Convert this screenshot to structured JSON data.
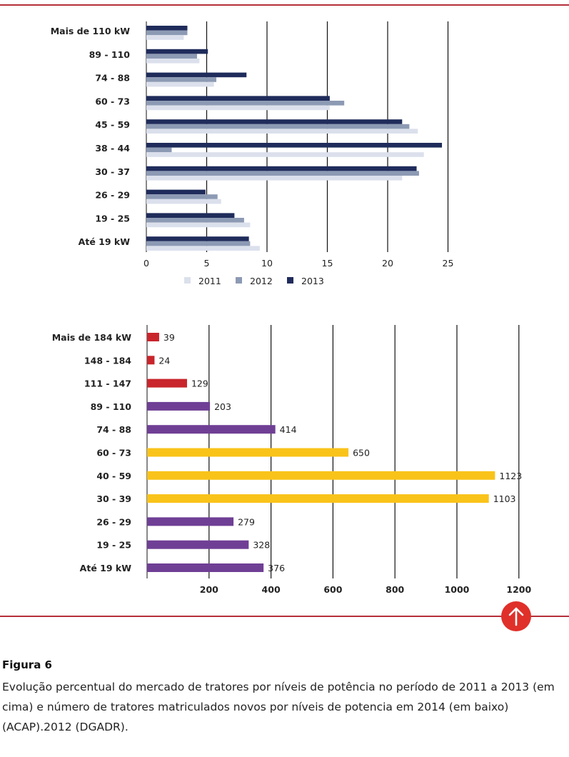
{
  "chart_data": [
    {
      "type": "bar",
      "orientation": "horizontal",
      "categories": [
        "Mais de 110 kW",
        "89 - 110",
        "74 - 88",
        "60 - 73",
        "45 - 59",
        "38 - 44",
        "30 - 37",
        "26 -  29",
        "19 - 25",
        "Até 19 kW"
      ],
      "series": [
        {
          "name": "2011",
          "color": "#dbe0ec",
          "values": [
            3.1,
            4.4,
            5.6,
            15.2,
            22.5,
            23.0,
            21.2,
            6.2,
            8.6,
            9.4
          ]
        },
        {
          "name": "2012",
          "color": "#8d9ab4",
          "values": [
            3.4,
            4.2,
            5.8,
            16.4,
            21.8,
            2.1,
            22.6,
            5.9,
            8.1,
            8.6
          ]
        },
        {
          "name": "2013",
          "color": "#1f2c5b",
          "values": [
            3.4,
            5.1,
            8.3,
            15.2,
            21.2,
            24.5,
            22.4,
            4.9,
            7.3,
            8.5
          ]
        }
      ],
      "xticks": [
        "0",
        "5",
        "10",
        "15",
        "20",
        "25"
      ],
      "xlim": [
        0,
        25
      ],
      "grid": true,
      "legend": "bottom"
    },
    {
      "type": "bar",
      "orientation": "horizontal",
      "categories": [
        "Mais de 184 kW",
        "148 - 184",
        "111 - 147",
        "89 - 110",
        "74 - 88",
        "60 - 73",
        "40 - 59",
        "30 - 39",
        "26 - 29",
        "19 - 25",
        "Até 19 kW"
      ],
      "values": [
        39,
        24,
        129,
        203,
        414,
        650,
        1123,
        1103,
        279,
        328,
        376
      ],
      "value_labels": [
        "39",
        "24",
        "129",
        "203",
        "414",
        "650",
        "1123",
        "1103",
        "279",
        "328",
        "376"
      ],
      "colors": [
        "#c9252c",
        "#c9252c",
        "#c9252c",
        "#6f3f95",
        "#6f3f95",
        "#f9c31a",
        "#f9c31a",
        "#f9c31a",
        "#6f3f95",
        "#6f3f95",
        "#6f3f95"
      ],
      "xticks": [
        "200",
        "400",
        "600",
        "800",
        "1000",
        "1200"
      ],
      "xlim": [
        0,
        1200
      ],
      "grid": true
    }
  ],
  "caption": {
    "title": "Figura 6",
    "text": "Evolução percentual do mercado de tratores por níveis de potência no período de 2011 a 2013 (em cima) e número de tratores matriculados novos por níveis de potencia em 2014 (em baixo) (ACAP).2012 (DGADR)."
  },
  "icons": {
    "scroll_top": "arrow-up-icon"
  },
  "colors": {
    "rule": "#b5303a",
    "up_button": "#e0302a"
  }
}
